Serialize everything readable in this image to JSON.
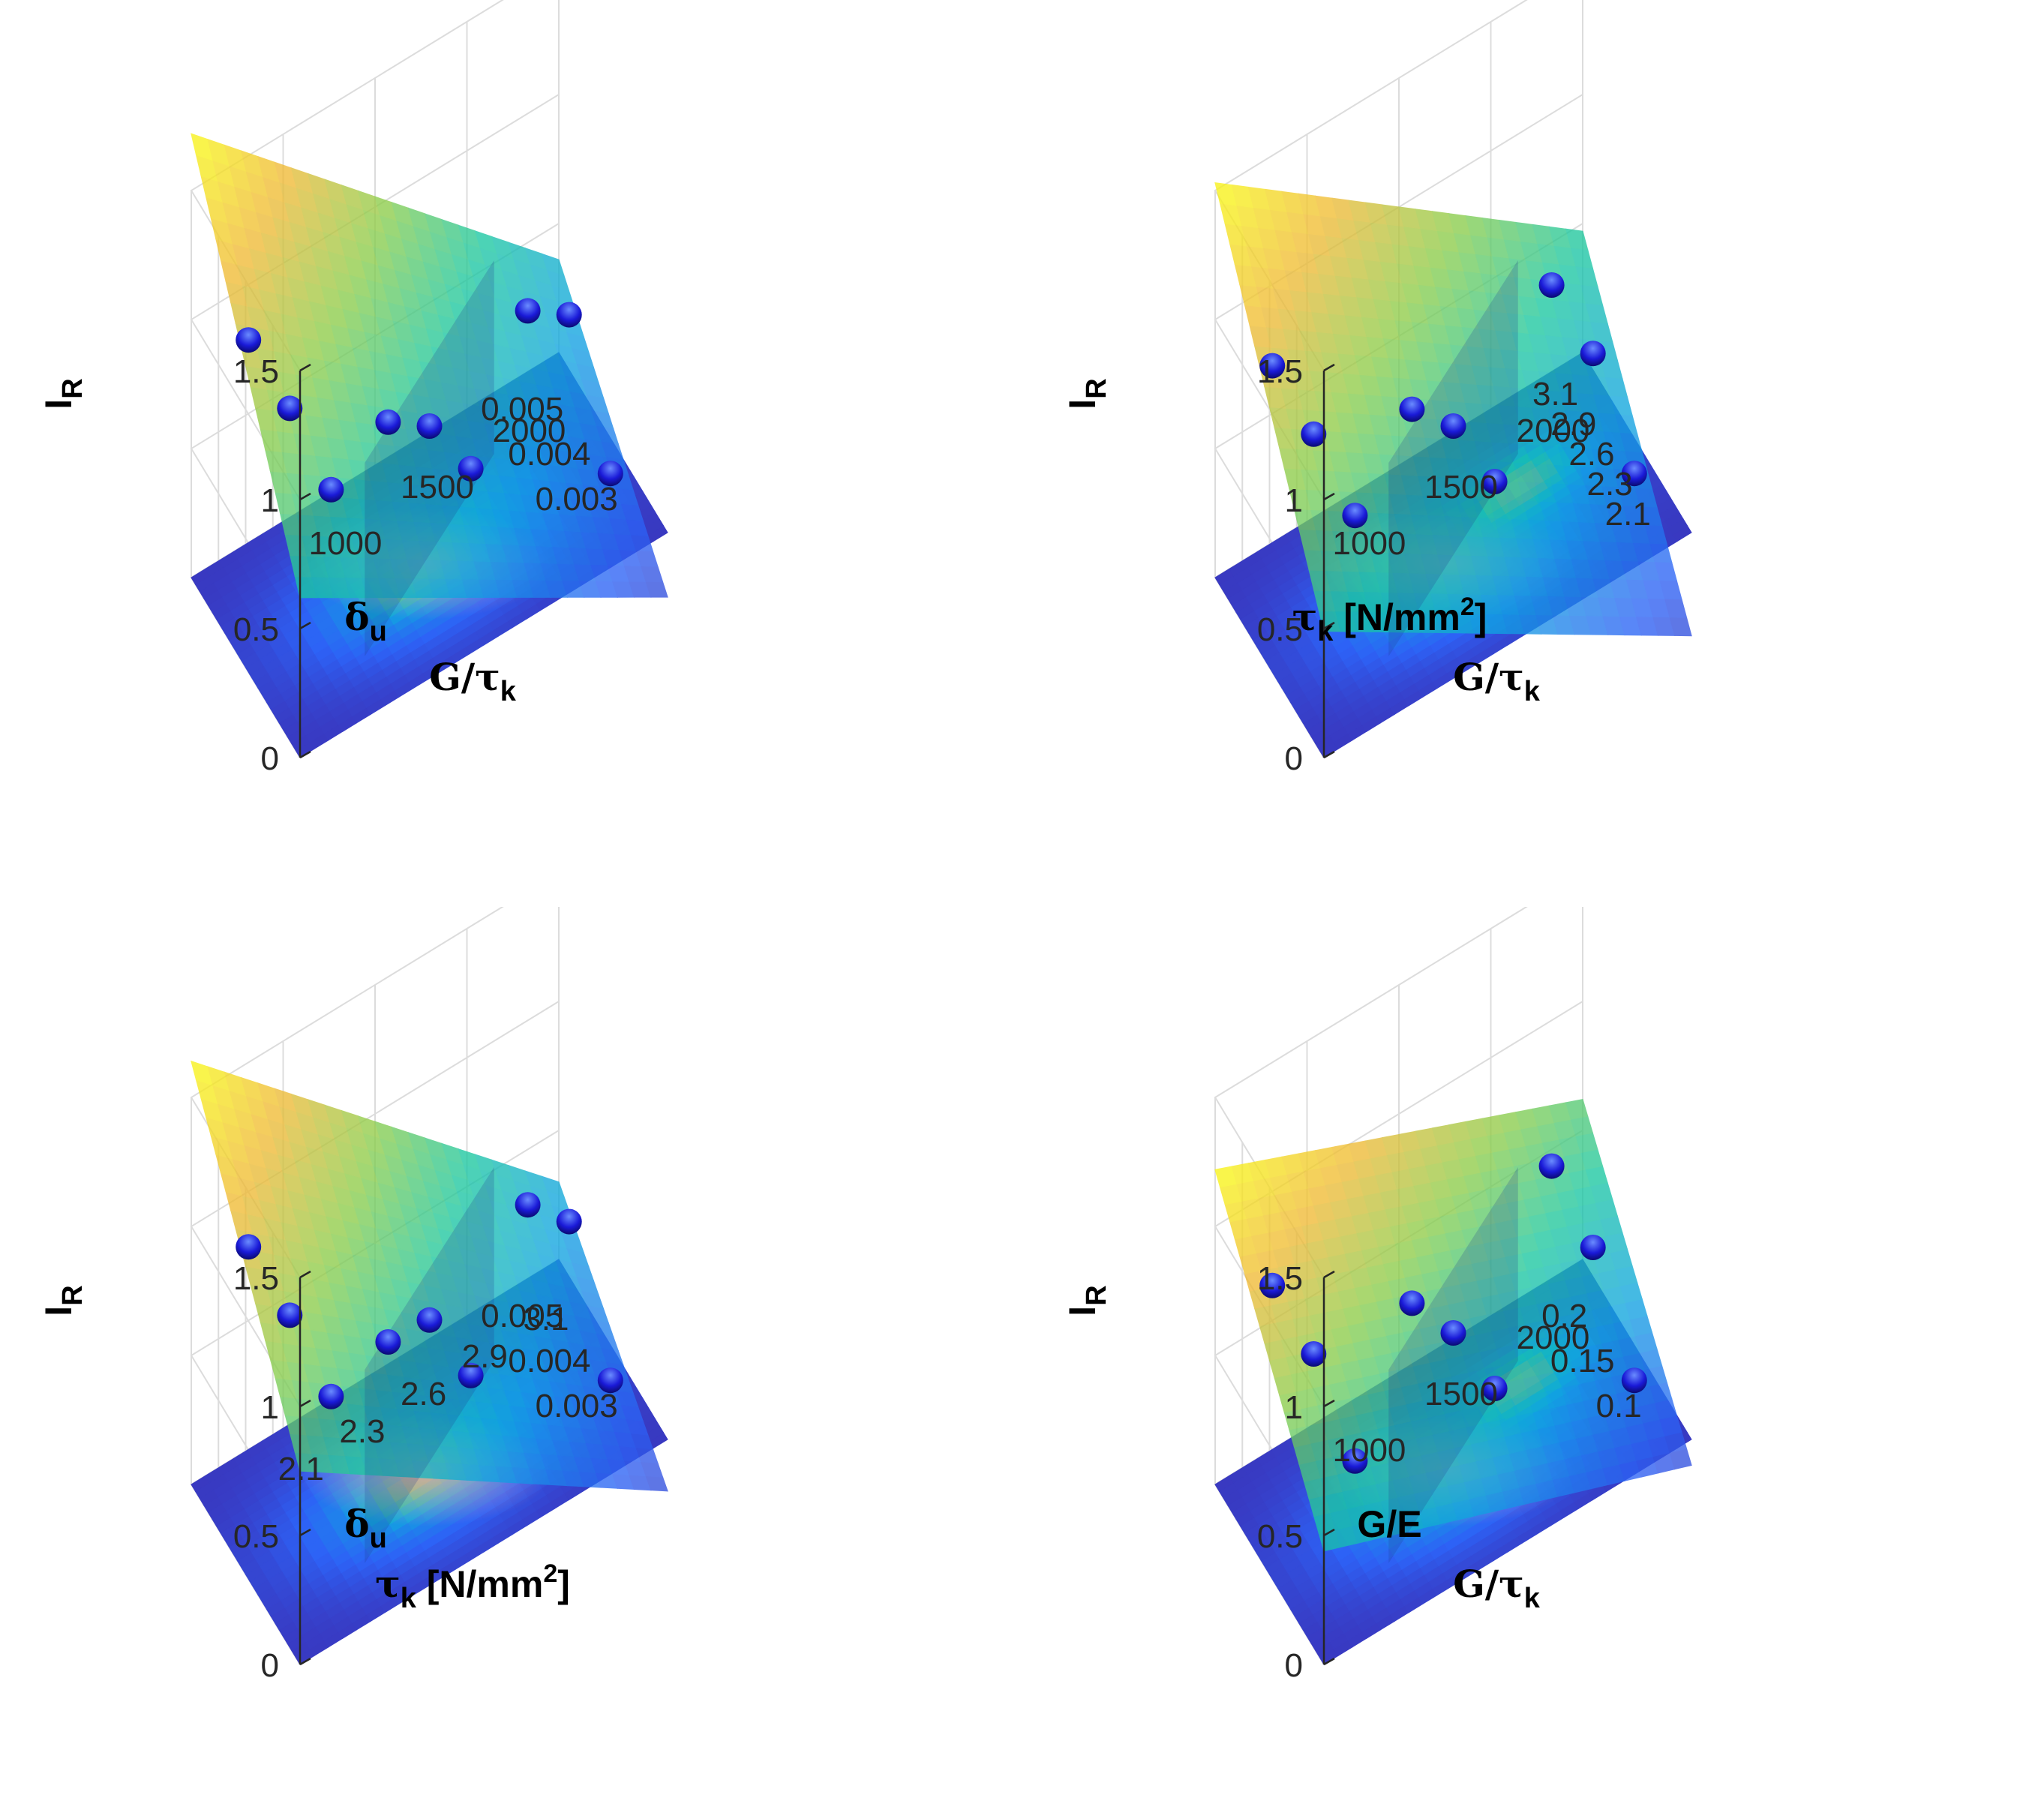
{
  "figure": {
    "title": "",
    "panel_count": 4
  },
  "colors": {
    "colormap": [
      "#3e26a8",
      "#2d62f6",
      "#10a5e0",
      "#1bc7a1",
      "#8ccd4a",
      "#f0ba35",
      "#f9fb15"
    ],
    "point_fill": "#1a1ad8",
    "point_highlight": "#6a8cff",
    "axis": "#262626",
    "grid": "#dcdcdc"
  },
  "chart_data": [
    {
      "type": "surface3d",
      "panel": "top-left",
      "zlabel": "I_R",
      "xlabel": "δ_u",
      "ylabel": "G/τ_k",
      "zlim": [
        0,
        1.5
      ],
      "zticks": [
        "0",
        "0.5",
        "1",
        "1.5"
      ],
      "xticks": [
        "0.005",
        "0.004",
        "0.003"
      ],
      "yticks": [
        "1000",
        "1500",
        "2000"
      ],
      "surface_corners": {
        "left": 0.62,
        "back": 1.72,
        "right": 0.36,
        "front": -0.25
      },
      "floor_hotspot": {
        "u": 0.46,
        "v": 0.46,
        "strength": 0.35
      },
      "points": [
        {
          "u": 0.0,
          "v": 0.5,
          "z": 0.6
        },
        {
          "u": 0.5,
          "v": 1.0,
          "z": 0.6
        },
        {
          "u": 0.0,
          "v": 0.0,
          "z": 0.85
        },
        {
          "u": 0.5,
          "v": 0.5,
          "z": 0.5
        },
        {
          "u": 1.0,
          "v": 1.0,
          "z": 0.35
        },
        {
          "u": 0.0,
          "v": 1.0,
          "z": 0.25
        },
        {
          "u": 1.0,
          "v": 0.5,
          "z": 0.25
        },
        {
          "u": 0.5,
          "v": 0.0,
          "z": 0.9
        },
        {
          "u": 1.0,
          "v": 0.0,
          "z": 0.9
        }
      ]
    },
    {
      "type": "surface3d",
      "panel": "top-right",
      "zlabel": "I_R",
      "xlabel": "τ_k [N/mm^2]",
      "ylabel": "G/τ_k",
      "zlim": [
        0,
        1.5
      ],
      "zticks": [
        "0",
        "0.5",
        "1",
        "1.5"
      ],
      "xticks": [
        "3.1",
        "2.9",
        "2.6",
        "2.3",
        "2.1"
      ],
      "yticks": [
        "1000",
        "1500",
        "2000"
      ],
      "surface_corners": {
        "left": 0.49,
        "back": 1.53,
        "right": 0.47,
        "front": -0.4
      },
      "floor_hotspot": {
        "u": 0.62,
        "v": 0.72,
        "strength": 1.0
      },
      "points": [
        {
          "u": 0.0,
          "v": 0.5,
          "z": 0.55
        },
        {
          "u": 0.5,
          "v": 1.0,
          "z": 0.45
        },
        {
          "u": 0.0,
          "v": 0.0,
          "z": 0.75
        },
        {
          "u": 0.5,
          "v": 0.5,
          "z": 0.5
        },
        {
          "u": 1.0,
          "v": 1.0,
          "z": 0.45
        },
        {
          "u": 0.0,
          "v": 1.0,
          "z": 0.25
        },
        {
          "u": 1.0,
          "v": 0.5,
          "z": 0.3
        },
        {
          "u": 0.5,
          "v": 0.0,
          "z": 0.8
        },
        {
          "u": 1.0,
          "v": 0.0,
          "z": 0.8
        }
      ]
    },
    {
      "type": "surface3d",
      "panel": "bottom-left",
      "zlabel": "I_R",
      "xlabel": "δ_u",
      "ylabel": "τ_k [N/mm^2]",
      "zlim": [
        0,
        1.5
      ],
      "zticks": [
        "0",
        "0.5",
        "1",
        "1.5"
      ],
      "xticks": [
        "0.005",
        "0.004",
        "0.003"
      ],
      "yticks": [
        "2.1",
        "2.3",
        "2.6",
        "2.9",
        "3.1"
      ],
      "surface_corners": {
        "left": 0.75,
        "back": 1.64,
        "right": 0.3,
        "front": -0.2
      },
      "floor_hotspot": {
        "u": 0.46,
        "v": 0.46,
        "strength": 0.35
      },
      "points": [
        {
          "u": 0.0,
          "v": 0.5,
          "z": 0.6
        },
        {
          "u": 0.5,
          "v": 1.0,
          "z": 0.6
        },
        {
          "u": 0.0,
          "v": 0.0,
          "z": 0.85
        },
        {
          "u": 0.5,
          "v": 0.5,
          "z": 0.55
        },
        {
          "u": 1.0,
          "v": 1.0,
          "z": 0.4
        },
        {
          "u": 0.0,
          "v": 1.0,
          "z": 0.25
        },
        {
          "u": 1.0,
          "v": 0.5,
          "z": 0.2
        },
        {
          "u": 0.5,
          "v": 0.0,
          "z": 0.9
        },
        {
          "u": 1.0,
          "v": 0.0,
          "z": 0.9
        }
      ]
    },
    {
      "type": "surface3d",
      "panel": "bottom-right",
      "zlabel": "I_R",
      "xlabel": "G/E",
      "ylabel": "G/τ_k",
      "zlim": [
        0,
        1.5
      ],
      "zticks": [
        "0",
        "0.5",
        "1",
        "1.5"
      ],
      "xticks": [
        "0.2",
        "0.15",
        "0.1"
      ],
      "yticks": [
        "1000",
        "1500",
        "2000"
      ],
      "surface_corners": {
        "left": 0.44,
        "back": 1.22,
        "right": 0.62,
        "front": -0.1
      },
      "floor_hotspot": {
        "u": 0.66,
        "v": 0.74,
        "strength": 1.0
      },
      "points": [
        {
          "u": 0.0,
          "v": 0.5,
          "z": 0.55
        },
        {
          "u": 0.5,
          "v": 1.0,
          "z": 0.5
        },
        {
          "u": 0.0,
          "v": 0.0,
          "z": 0.6
        },
        {
          "u": 0.5,
          "v": 0.5,
          "z": 0.5
        },
        {
          "u": 1.0,
          "v": 1.0,
          "z": 0.55
        },
        {
          "u": 0.0,
          "v": 1.0,
          "z": 0.25
        },
        {
          "u": 1.0,
          "v": 0.5,
          "z": 0.35
        },
        {
          "u": 0.5,
          "v": 0.0,
          "z": 0.75
        },
        {
          "u": 1.0,
          "v": 0.0,
          "z": 0.75
        }
      ]
    }
  ]
}
